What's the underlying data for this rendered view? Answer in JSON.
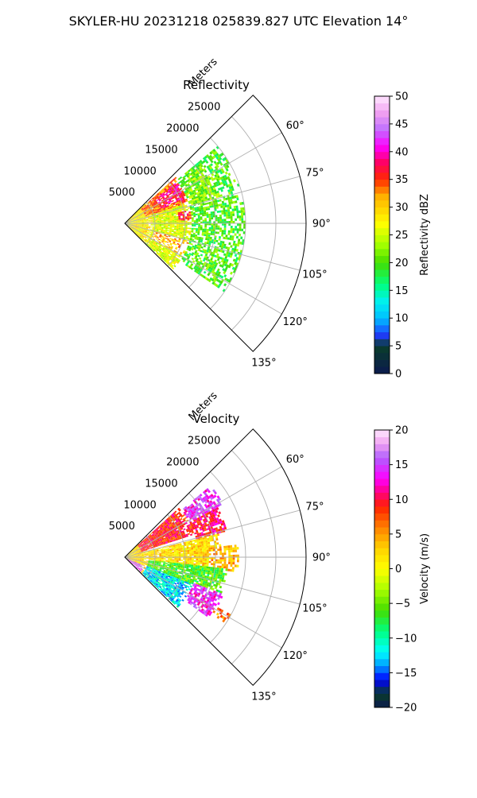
{
  "page": {
    "suptitle": "SKYLER-HU  20231218  025839.827 UTC Elevation 14°"
  },
  "colors": {
    "grid": "#b0b0b0",
    "spine": "#000000"
  },
  "chart_data": [
    {
      "type": "heatmap",
      "subtype": "polar-sector-radar",
      "title": "Reflectivity",
      "r_label": "Meters",
      "r_ticks": [
        5000,
        10000,
        15000,
        20000,
        25000
      ],
      "r_tick_labels": [
        "5000",
        "10000",
        "15000",
        "20000",
        "25000"
      ],
      "r_max": 30000,
      "theta_range_deg": [
        45,
        135
      ],
      "theta_ticks": [
        60,
        75,
        90,
        105,
        120,
        135
      ],
      "theta_tick_labels": [
        "60°",
        "75°",
        "90°",
        "105°",
        "120°",
        "135°"
      ],
      "data_extent_m": 20000,
      "colorbar": {
        "label": "Reflectivity dBZ",
        "min": 0,
        "max": 50,
        "ticks": [
          0,
          5,
          10,
          15,
          20,
          25,
          30,
          35,
          40,
          45,
          50
        ],
        "tick_labels": [
          "0",
          "5",
          "10",
          "15",
          "20",
          "25",
          "30",
          "35",
          "40",
          "45",
          "50"
        ],
        "stops": [
          [
            0,
            "#0b1a4e"
          ],
          [
            5,
            "#0a3d2a"
          ],
          [
            7,
            "#1f3bff"
          ],
          [
            10,
            "#00bfff"
          ],
          [
            13,
            "#00f0f0"
          ],
          [
            16,
            "#00ff80"
          ],
          [
            20,
            "#44dd00"
          ],
          [
            23,
            "#9dff00"
          ],
          [
            27,
            "#ffff00"
          ],
          [
            32,
            "#ffb000"
          ],
          [
            35,
            "#ff2a00"
          ],
          [
            38,
            "#ff0060"
          ],
          [
            41,
            "#ff00ff"
          ],
          [
            44,
            "#c070ff"
          ],
          [
            47,
            "#f0a0f0"
          ],
          [
            50,
            "#ffe8ff"
          ]
        ]
      },
      "regions": [
        {
          "r0": 0,
          "r1": 4500,
          "t0": 45,
          "t1": 135,
          "value": 28,
          "density": 1
        },
        {
          "r0": 3500,
          "r1": 12000,
          "t0": 47,
          "t1": 72,
          "value": 33,
          "density": 0.95
        },
        {
          "r0": 6500,
          "r1": 11500,
          "t0": 52,
          "t1": 68,
          "value": 38,
          "density": 0.85
        },
        {
          "r0": 4500,
          "r1": 11000,
          "t0": 72,
          "t1": 134,
          "value": 26,
          "density": 0.93
        },
        {
          "r0": 9000,
          "r1": 12500,
          "t0": 79,
          "t1": 87,
          "value": 35,
          "density": 0.6
        },
        {
          "r0": 5000,
          "r1": 11000,
          "t0": 106,
          "t1": 120,
          "value": 31,
          "density": 0.55
        },
        {
          "r0": 11000,
          "r1": 20000,
          "t0": 50,
          "t1": 125,
          "value": 20,
          "density": 0.65
        },
        {
          "r0": 11500,
          "r1": 16500,
          "t0": 53,
          "t1": 75,
          "value": 22,
          "density": 0.85
        }
      ]
    },
    {
      "type": "heatmap",
      "subtype": "polar-sector-radar",
      "title": "Velocity",
      "r_label": "Meters",
      "r_ticks": [
        5000,
        10000,
        15000,
        20000,
        25000
      ],
      "r_tick_labels": [
        "5000",
        "10000",
        "15000",
        "20000",
        "25000"
      ],
      "r_max": 30000,
      "theta_range_deg": [
        45,
        135
      ],
      "theta_ticks": [
        60,
        75,
        90,
        105,
        120,
        135
      ],
      "theta_tick_labels": [
        "60°",
        "75°",
        "90°",
        "105°",
        "120°",
        "135°"
      ],
      "data_extent_m": 20000,
      "colorbar": {
        "label": "Velocity (m/s)",
        "min": -20,
        "max": 20,
        "ticks": [
          -20,
          -15,
          -10,
          -5,
          0,
          5,
          10,
          15,
          20
        ],
        "tick_labels": [
          "−20",
          "−15",
          "−10",
          "−5",
          "0",
          "5",
          "10",
          "15",
          "20"
        ],
        "stops": [
          [
            -20,
            "#0b1a4e"
          ],
          [
            -18,
            "#0a3d2a"
          ],
          [
            -16,
            "#0000ff"
          ],
          [
            -14,
            "#0099ff"
          ],
          [
            -12,
            "#00ffff"
          ],
          [
            -9,
            "#00ff80"
          ],
          [
            -6,
            "#44dd00"
          ],
          [
            -3,
            "#aaff00"
          ],
          [
            0,
            "#ffff00"
          ],
          [
            3,
            "#ffd000"
          ],
          [
            6,
            "#ff8000"
          ],
          [
            9,
            "#ff2000"
          ],
          [
            11,
            "#ff0080"
          ],
          [
            13,
            "#ff00ff"
          ],
          [
            16,
            "#b060ff"
          ],
          [
            18,
            "#f0a0f0"
          ],
          [
            20,
            "#ffe8ff"
          ]
        ]
      },
      "regions": [
        {
          "r0": 0,
          "r1": 4000,
          "t0": 45,
          "t1": 135,
          "value": 2,
          "density": 1
        },
        {
          "r0": 3000,
          "r1": 12000,
          "t0": 48,
          "t1": 72,
          "value": 9,
          "density": 0.97
        },
        {
          "r0": 12000,
          "r1": 18500,
          "t0": 50,
          "t1": 62,
          "value": 14,
          "density": 0.75
        },
        {
          "r0": 12000,
          "r1": 17500,
          "t0": 62,
          "t1": 76,
          "value": 10,
          "density": 0.85
        },
        {
          "r0": 4000,
          "r1": 16000,
          "t0": 76,
          "t1": 97,
          "value": 2,
          "density": 0.92
        },
        {
          "r0": 14000,
          "r1": 19000,
          "t0": 84,
          "t1": 98,
          "value": 4,
          "density": 0.7
        },
        {
          "r0": 4000,
          "r1": 17000,
          "t0": 97,
          "t1": 112,
          "value": -6,
          "density": 0.9
        },
        {
          "r0": 4000,
          "r1": 12000,
          "t0": 112,
          "t1": 134,
          "value": -12,
          "density": 0.92
        },
        {
          "r0": 12000,
          "r1": 17500,
          "t0": 110,
          "t1": 126,
          "value": 14,
          "density": 0.7
        },
        {
          "r0": 17000,
          "r1": 20000,
          "t0": 118,
          "t1": 124,
          "value": 6,
          "density": 0.4
        },
        {
          "r0": 0,
          "r1": 3500,
          "t0": 115,
          "t1": 134,
          "value": 15,
          "density": 0.7
        }
      ]
    }
  ]
}
